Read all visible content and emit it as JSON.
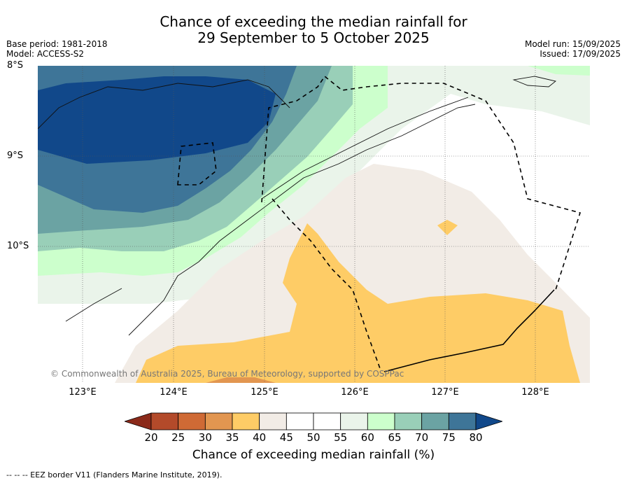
{
  "title": {
    "line1": "Chance of exceeding the median rainfall for",
    "line2": "29 September to 5 October 2025"
  },
  "left_meta": {
    "base_period": "Base period: 1981-2018",
    "model": "Model: ACCESS-S2"
  },
  "right_meta": {
    "model_run": "Model run: 15/09/2025",
    "issued": "Issued: 17/09/2025"
  },
  "lat_labels": [
    "8°S",
    "9°S",
    "10°S"
  ],
  "lon_labels": [
    "123°E",
    "124°E",
    "125°E",
    "126°E",
    "127°E",
    "128°E"
  ],
  "copyright": "© Commonwealth of Australia 2025, Bureau of Meteorology, supported by COSPPac",
  "colorbar": {
    "ticks": [
      "20",
      "25",
      "30",
      "35",
      "40",
      "45",
      "50",
      "55",
      "60",
      "65",
      "70",
      "75",
      "80"
    ],
    "colors": [
      "#8b2a1a",
      "#b34a2a",
      "#cf6a35",
      "#e29650",
      "#fecc66",
      "#f2ece6",
      "#ffffff",
      "#ffffff",
      "#eaf4ea",
      "#ccffcc",
      "#99cfb8",
      "#6ba3a3",
      "#3e7598",
      "#11488a"
    ],
    "title": "Chance of exceeding median rainfall (%)"
  },
  "footer": "--  --  -- EEZ border V11 (Flanders Marine Institute, 2019)."
}
